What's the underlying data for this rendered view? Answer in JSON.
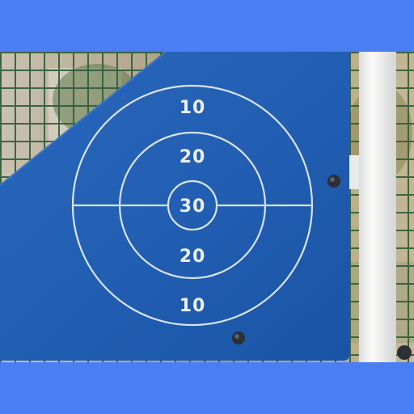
{
  "scene": {
    "frame_color": "#4a7ef2",
    "panel_color": "#1f5cb0",
    "ring_color": "#d8e4f0",
    "post_color": "#f1f2f0",
    "fence_color": "#3f6b4a"
  },
  "target": {
    "labels": {
      "top_outer": "10",
      "top_middle": "20",
      "center": "30",
      "bottom_middle": "20",
      "bottom_outer": "10"
    }
  }
}
